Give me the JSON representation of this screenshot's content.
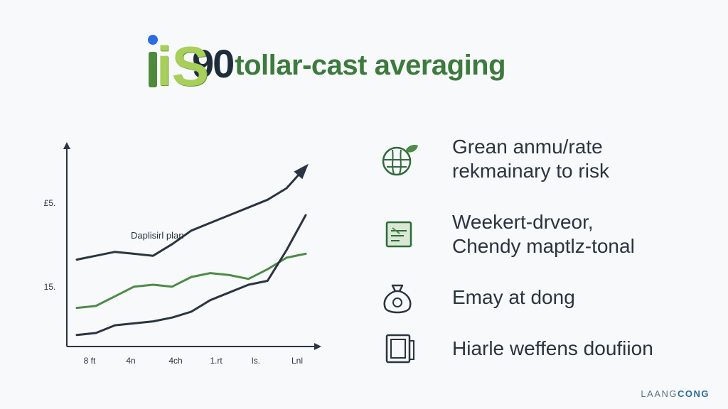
{
  "title": {
    "logo_letters": "iS",
    "number": "90",
    "text": "tollar-cast averaging"
  },
  "chart_data": {
    "type": "line",
    "categories": [
      "8 ft",
      "4n",
      "4ch",
      "1.rt",
      "ls.",
      "Lnl"
    ],
    "x": [
      0,
      1,
      2,
      3,
      4,
      5,
      6,
      7,
      8,
      9,
      10,
      11,
      12
    ],
    "y_ticks": [
      "£5.",
      "15."
    ],
    "ylim": [
      0,
      100
    ],
    "annotation": "Daplisirl plan",
    "arrows": true,
    "series": [
      {
        "color": "#2b3440",
        "values": [
          45,
          47,
          49,
          48,
          47,
          53,
          60,
          64,
          68,
          72,
          76,
          82,
          93
        ],
        "arrow_end": true
      },
      {
        "color": "#4f8a48",
        "values": [
          20,
          21,
          26,
          31,
          32,
          31,
          36,
          38,
          37,
          35,
          40,
          46,
          48
        ]
      },
      {
        "color": "#2b3440",
        "values": [
          6,
          7,
          11,
          12,
          13,
          15,
          18,
          24,
          28,
          32,
          34,
          50,
          68
        ]
      }
    ]
  },
  "colors": {
    "dark": "#2b3440",
    "green": "#4f8a48",
    "light_green": "#a7cf5a"
  },
  "features": [
    {
      "icon": "globe-leaf-icon",
      "lines": [
        "Grean anmu/rate",
        "rekmainary to risk"
      ]
    },
    {
      "icon": "document-ticket-icon",
      "lines": [
        "Weekert-drveor,",
        "Chendy maptlz-tonal"
      ]
    },
    {
      "icon": "money-bag-icon",
      "lines": [
        "Emay at dong"
      ]
    },
    {
      "icon": "calendar-frame-icon",
      "lines": [
        "Hiarle weffens doufiion"
      ]
    }
  ],
  "brand": {
    "part1": "LAANG",
    "part2": "CONG"
  }
}
